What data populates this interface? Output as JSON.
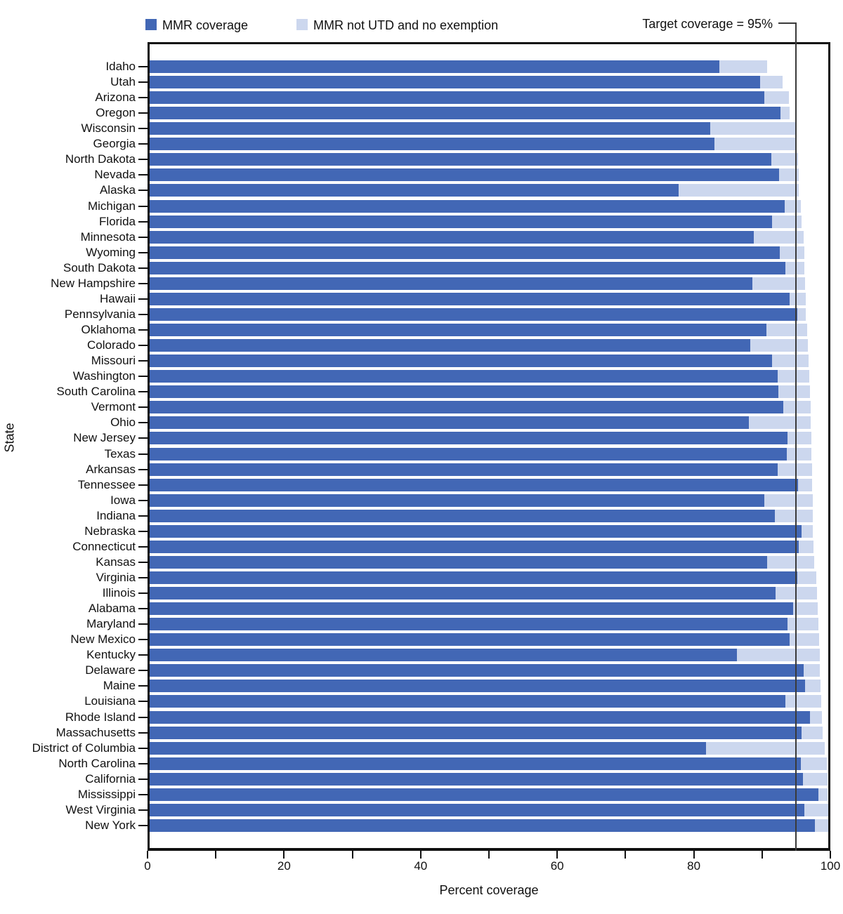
{
  "legend": {
    "items": [
      {
        "label": "MMR coverage",
        "color": "#4267b5"
      },
      {
        "label": "MMR not UTD and no exemption",
        "color": "#ccd7ee"
      }
    ],
    "target_label": "Target coverage = 95%"
  },
  "colors": {
    "mmr_bar": "#4267b5",
    "not_utd_bar": "#ccd7ee",
    "target_line": "#3a3a3a",
    "axis": "#111111"
  },
  "chart_data": {
    "type": "bar",
    "orientation": "horizontal",
    "stacked": true,
    "xlabel": "Percent coverage",
    "ylabel": "State",
    "xlim": [
      0,
      100
    ],
    "x_major_ticks": [
      0,
      20,
      40,
      60,
      80,
      100
    ],
    "x_minor_ticks": [
      10,
      30,
      50,
      70,
      90
    ],
    "target_value": 95,
    "legend_position": "top",
    "categories": [
      "Idaho",
      "Utah",
      "Arizona",
      "Oregon",
      "Wisconsin",
      "Georgia",
      "North Dakota",
      "Nevada",
      "Alaska",
      "Michigan",
      "Florida",
      "Minnesota",
      "Wyoming",
      "South Dakota",
      "New Hampshire",
      "Hawaii",
      "Pennsylvania",
      "Oklahoma",
      "Colorado",
      "Missouri",
      "Washington",
      "South Carolina",
      "Vermont",
      "Ohio",
      "New Jersey",
      "Texas",
      "Arkansas",
      "Tennessee",
      "Iowa",
      "Indiana",
      "Nebraska",
      "Connecticut",
      "Kansas",
      "Virginia",
      "Illinois",
      "Alabama",
      "Maryland",
      "New Mexico",
      "Kentucky",
      "Delaware",
      "Maine",
      "Louisiana",
      "Rhode Island",
      "Massachusetts",
      "District of Columbia",
      "North Carolina",
      "California",
      "Mississippi",
      "West Virginia",
      "New York"
    ],
    "series": [
      {
        "name": "MMR coverage",
        "values": [
          84.0,
          90.0,
          90.6,
          93.0,
          82.6,
          83.2,
          91.6,
          92.8,
          78.0,
          93.6,
          91.7,
          89.0,
          92.9,
          93.7,
          88.8,
          94.3,
          95.4,
          90.9,
          88.5,
          91.7,
          92.5,
          92.7,
          93.4,
          88.3,
          94.0,
          93.9,
          92.5,
          95.6,
          90.6,
          92.1,
          96.1,
          95.7,
          91.0,
          95.4,
          92.2,
          94.8,
          94.0,
          94.3,
          86.5,
          96.4,
          96.6,
          93.7,
          97.3,
          96.1,
          82.0,
          96.0,
          96.3,
          98.6,
          96.5,
          98.0
        ]
      },
      {
        "name": "MMR not UTD and no exemption",
        "values": [
          7.0,
          3.3,
          3.6,
          1.3,
          12.6,
          12.1,
          3.9,
          2.9,
          17.7,
          2.4,
          4.4,
          7.4,
          3.6,
          2.8,
          7.8,
          2.4,
          1.3,
          6.0,
          8.5,
          5.4,
          4.7,
          4.6,
          4.0,
          9.1,
          3.5,
          3.6,
          5.1,
          2.0,
          7.1,
          5.6,
          1.6,
          2.1,
          6.9,
          2.8,
          6.1,
          3.6,
          4.6,
          4.4,
          12.3,
          2.4,
          2.3,
          5.3,
          1.8,
          3.1,
          17.5,
          3.8,
          3.6,
          1.3,
          3.5,
          2.0
        ]
      }
    ]
  }
}
